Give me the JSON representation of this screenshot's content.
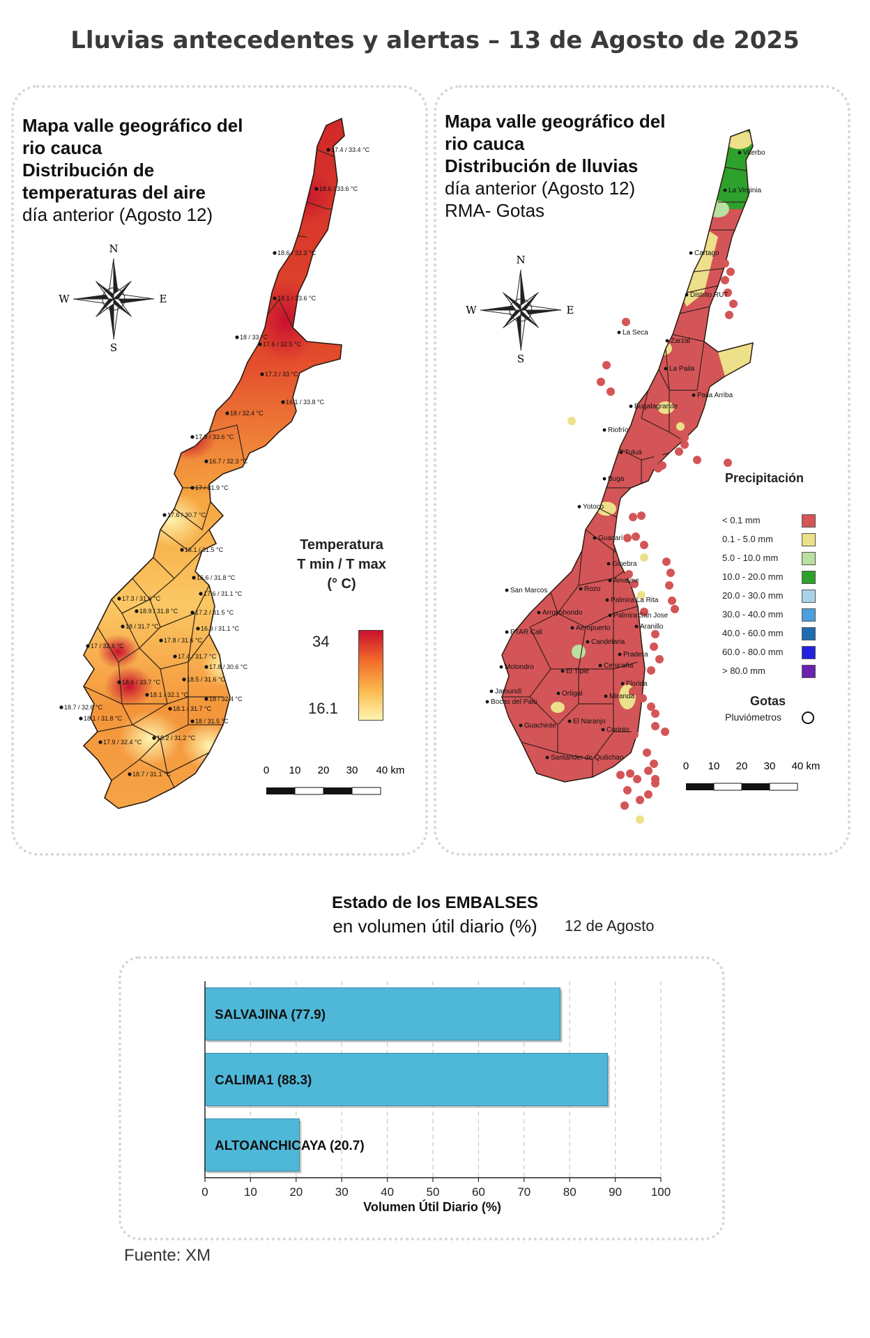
{
  "title": "Lluvias antecedentes y alertas – 13 de Agosto de 2025",
  "temp_panel": {
    "title_l1": "Mapa valle geográfico del",
    "title_l2": "rio cauca",
    "title_l3": "Distribución de",
    "title_l4": "temperaturas del aire",
    "title_l5": "día anterior (Agosto 12)",
    "legend_title_l1": "Temperatura",
    "legend_title_l2": "T min / T max",
    "legend_title_l3": "(° C)",
    "legend_max": "34",
    "legend_min": "16.1",
    "legend_colors": [
      "#c8102e",
      "#f26b2a",
      "#fbb84c",
      "#fff5b0"
    ],
    "compass": {
      "n": "N",
      "s": "S",
      "e": "E",
      "w": "W"
    },
    "scale_labels": [
      "0",
      "10",
      "20",
      "30",
      "40 km"
    ],
    "stations": [
      "17.4 / 33.4 °C",
      "18.6 / 33.6 °C",
      "18.6 / 32.3 °C",
      "18.1 / 33.6 °C",
      "18 / 33 °C",
      "17.6 / 32.5 °C",
      "17.2 / 33 °C",
      "16.1 / 33.8 °C",
      "18 / 32.4 °C",
      "17.9 / 33.6 °C",
      "16.7 / 32.3 °C",
      "17 / 31.9 °C",
      "17.6 / 30.7 °C",
      "16.1 / 31.5 °C",
      "16.6 / 31.8 °C",
      "17.6 / 31.1 °C",
      "17.3 / 31.6 °C",
      "18.9 / 31.8 °C",
      "17.2 / 31.5 °C",
      "18 / 31.7 °C",
      "17.8 / 31.6 °C",
      "16.9 / 31.1 °C",
      "17 / 32.6 °C",
      "17.4 / 31.7 °C",
      "17.8 / 30.6 °C",
      "18.6 / 33.7 °C",
      "18.5 / 31.6 °C",
      "18.1 / 32.1 °C",
      "18 / 32.4 °C",
      "18.1 / 31.7 °C",
      "18.7 / 32.6 °C",
      "18.1 / 31.8 °C",
      "18 / 31.5 °C",
      "18.2 / 31.2 °C",
      "17.9 / 32.4 °C",
      "18.7 / 31.1 °C"
    ]
  },
  "rain_panel": {
    "title_l1": "Mapa valle geográfico del",
    "title_l2": "rio cauca",
    "title_l3": "Distribución de lluvias",
    "title_l4": "día anterior (Agosto 12)",
    "title_l5": "RMA- Gotas",
    "legend_title": "Precipitación",
    "legend": [
      {
        "label": "< 0.1 mm",
        "color": "#d45557"
      },
      {
        "label": "0.1 - 5.0 mm",
        "color": "#ede08a"
      },
      {
        "label": "5.0 - 10.0 mm",
        "color": "#b8e0a0"
      },
      {
        "label": "10.0 - 20.0 mm",
        "color": "#2ea02c"
      },
      {
        "label": "20.0 - 30.0 mm",
        "color": "#a8d2e8"
      },
      {
        "label": "30.0 - 40.0 mm",
        "color": "#4a9fdc"
      },
      {
        "label": "40.0 - 60.0 mm",
        "color": "#1e6db3"
      },
      {
        "label": "60.0 - 80.0 mm",
        "color": "#2222dd"
      },
      {
        "label": "> 80.0 mm",
        "color": "#6a22b0"
      }
    ],
    "gotas_title": "Gotas",
    "gotas_label": "Pluviómetros",
    "compass": {
      "n": "N",
      "s": "S",
      "e": "E",
      "w": "W"
    },
    "scale_labels": [
      "0",
      "10",
      "20",
      "30",
      "40 km"
    ],
    "places": [
      "Viterbo",
      "La Virginia",
      "Cartago",
      "Distrito RUT",
      "La Seca",
      "Zarzal",
      "La Paila",
      "Paila Arriba",
      "Bugalagrande",
      "Riofrío",
      "Tuluá",
      "Buga",
      "Yotoco",
      "Guacarí",
      "Ginebra",
      "San Marcos",
      "Rozo",
      "Amaime",
      "Palmira La Rita",
      "Arroyohondo",
      "Palmira San Jose",
      "PTAR Cali",
      "Aeropuerto",
      "Candelaria",
      "Aranillo",
      "Pradera",
      "Cenicaña",
      "Molondro",
      "El Tiple",
      "Florida",
      "Jamundí",
      "Bocas del Palo",
      "Ortigal",
      "Miranda",
      "El Naranjo",
      "Guachinte",
      "Corinto",
      "Santander de Quilichao"
    ]
  },
  "reservoirs": {
    "title_bold": "Estado de los EMBALSES",
    "title_normal": "en volumen útil diario (%)",
    "date": "12 de Agosto",
    "source": "Fuente: XM",
    "chart_data": {
      "type": "bar",
      "orientation": "horizontal",
      "categories": [
        "SALVAJINA",
        "CALIMA1",
        "ALTOANCHICAYA"
      ],
      "values": [
        77.9,
        88.3,
        20.7
      ],
      "bar_labels": [
        "SALVAJINA (77.9)",
        "CALIMA1 (88.3)",
        "ALTOANCHICAYA (20.7)"
      ],
      "xlabel": "Volumen Útil Diario (%)",
      "xlim": [
        0,
        100
      ],
      "xticks": [
        "0",
        "10",
        "20",
        "30",
        "40",
        "50",
        "60",
        "70",
        "80",
        "90",
        "100"
      ],
      "bar_color": "#4fb8d8",
      "grid": "dashed vertical"
    }
  }
}
